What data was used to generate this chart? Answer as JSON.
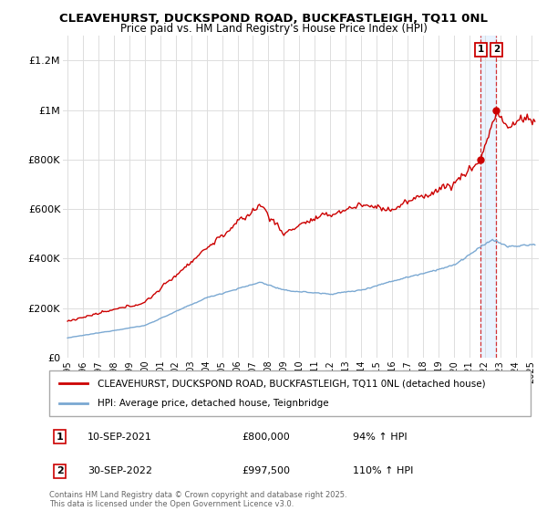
{
  "title": "CLEAVEHURST, DUCKSPOND ROAD, BUCKFASTLEIGH, TQ11 0NL",
  "subtitle": "Price paid vs. HM Land Registry's House Price Index (HPI)",
  "legend_line1": "CLEAVEHURST, DUCKSPOND ROAD, BUCKFASTLEIGH, TQ11 0NL (detached house)",
  "legend_line2": "HPI: Average price, detached house, Teignbridge",
  "annotation1_date": "10-SEP-2021",
  "annotation1_price": "£800,000",
  "annotation1_hpi": "94% ↑ HPI",
  "annotation1_year": 2021.75,
  "annotation1_value": 800000,
  "annotation2_date": "30-SEP-2022",
  "annotation2_price": "£997,500",
  "annotation2_hpi": "110% ↑ HPI",
  "annotation2_year": 2022.75,
  "annotation2_value": 997500,
  "ylim": [
    0,
    1300000
  ],
  "xlim_start": 1994.7,
  "xlim_end": 2025.5,
  "yticks": [
    0,
    200000,
    400000,
    600000,
    800000,
    1000000,
    1200000
  ],
  "ytick_labels": [
    "£0",
    "£200K",
    "£400K",
    "£600K",
    "£800K",
    "£1M",
    "£1.2M"
  ],
  "background_color": "#ffffff",
  "grid_color": "#dddddd",
  "red_color": "#cc0000",
  "blue_color": "#7aa8d2",
  "annotation_color": "#cc0000",
  "shade_color": "#ddeeff",
  "footer_text": "Contains HM Land Registry data © Crown copyright and database right 2025.\nThis data is licensed under the Open Government Licence v3.0."
}
